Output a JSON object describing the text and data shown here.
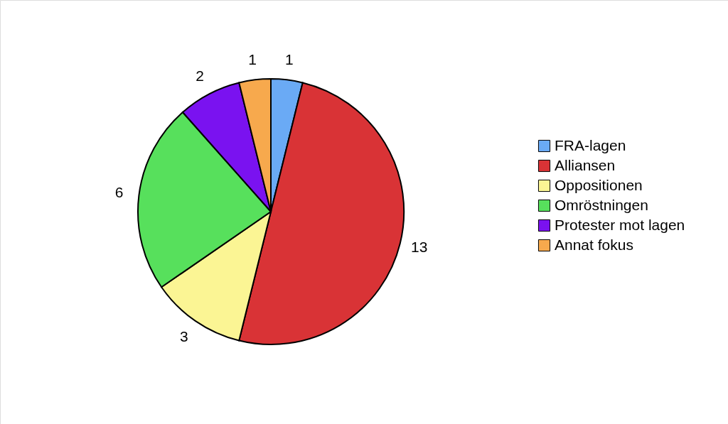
{
  "chart_data": {
    "type": "pie",
    "categories": [
      "FRA-lagen",
      "Alliansen",
      "Oppositionen",
      "Omröstningen",
      "Protester mot lagen",
      "Annat fokus"
    ],
    "values": [
      1,
      13,
      3,
      6,
      2,
      1
    ],
    "colors": [
      "#6aaaf5",
      "#d93336",
      "#fbf594",
      "#57e05c",
      "#7a12f0",
      "#f7a94d"
    ],
    "data_labels": true,
    "legend": "right"
  }
}
